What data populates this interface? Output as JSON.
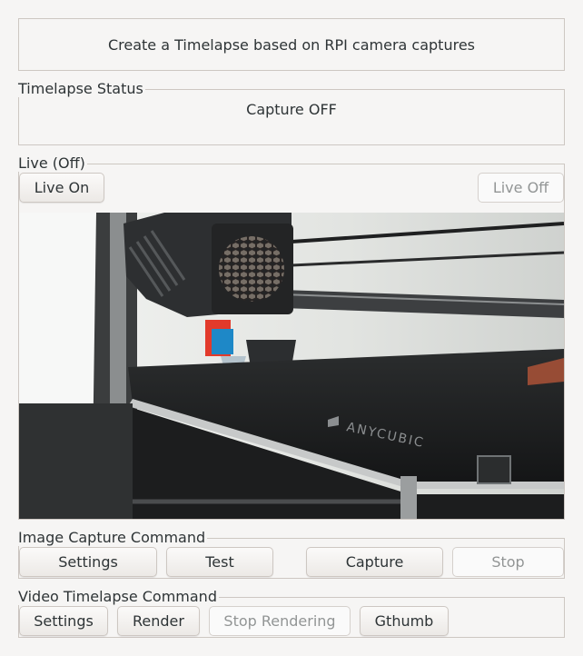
{
  "header": {
    "title": "Create a Timelapse based on RPI camera captures"
  },
  "timelapse_status": {
    "group_label": "Timelapse Status",
    "status_text": "Capture OFF"
  },
  "live": {
    "group_label": "Live (Off)",
    "live_on_label": "Live On",
    "live_off_label": "Live Off",
    "camera_text": "ANYCUBIC"
  },
  "image_capture": {
    "group_label": "Image Capture Command",
    "settings_label": "Settings",
    "test_label": "Test",
    "capture_label": "Capture",
    "stop_label": "Stop"
  },
  "video_timelapse": {
    "group_label": "Video Timelapse Command",
    "settings_label": "Settings",
    "render_label": "Render",
    "stop_rendering_label": "Stop Rendering",
    "gthumb_label": "Gthumb"
  },
  "colors": {
    "background": "#f6f5f4",
    "border": "#cdc7c2",
    "text": "#2e3436",
    "disabled_text": "#929595"
  }
}
